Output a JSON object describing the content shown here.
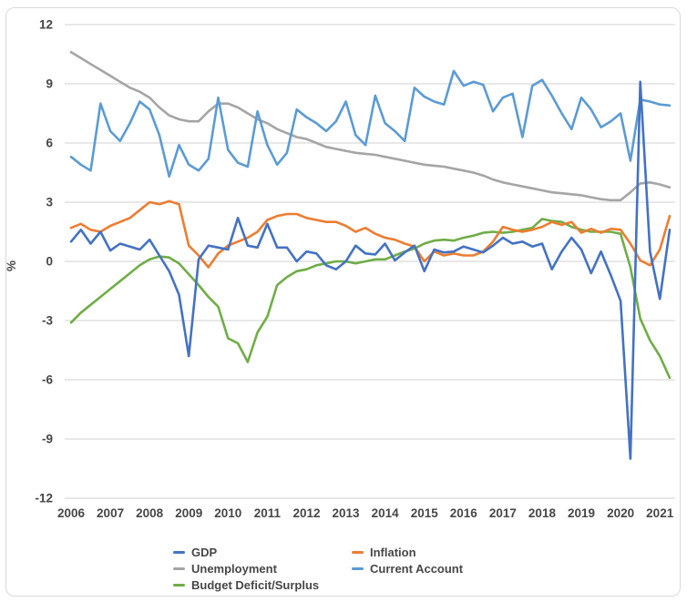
{
  "chart_data": {
    "type": "line",
    "title": "",
    "ylabel": "%",
    "grid": true,
    "legend_position": "bottom",
    "x_axis": {
      "unit": "quarter",
      "points_per_year": 4,
      "year_labels": [
        "2006",
        "2007",
        "2008",
        "2009",
        "2010",
        "2011",
        "2012",
        "2013",
        "2014",
        "2015",
        "2016",
        "2017",
        "2018",
        "2019",
        "2020",
        "2021"
      ]
    },
    "y_axis": {
      "ticks": [
        12,
        9,
        6,
        3,
        0,
        -3,
        -6,
        -9,
        -12
      ],
      "min": -12,
      "max": 12
    },
    "series": [
      {
        "name": "GDP",
        "color": "#4472C4",
        "values": [
          1.0,
          1.6,
          0.9,
          1.5,
          0.55,
          0.9,
          0.75,
          0.6,
          1.1,
          0.3,
          -0.5,
          -1.7,
          -4.8,
          0.1,
          0.8,
          0.7,
          0.6,
          2.2,
          0.8,
          0.7,
          1.9,
          0.7,
          0.7,
          0.0,
          0.5,
          0.4,
          -0.2,
          -0.4,
          0.0,
          0.8,
          0.4,
          0.35,
          0.9,
          0.05,
          0.45,
          0.8,
          -0.5,
          0.6,
          0.45,
          0.5,
          0.75,
          0.6,
          0.45,
          0.8,
          1.2,
          0.9,
          1.0,
          0.75,
          0.9,
          -0.4,
          0.5,
          1.2,
          0.6,
          -0.6,
          0.5,
          -0.7,
          -2.0,
          -10.0,
          9.1,
          0.5,
          -1.9,
          1.6
        ]
      },
      {
        "name": "Inflation",
        "color": "#ED7D31",
        "values": [
          1.7,
          1.9,
          1.6,
          1.5,
          1.8,
          2.0,
          2.2,
          2.6,
          3.0,
          2.9,
          3.05,
          2.9,
          0.8,
          0.3,
          -0.3,
          0.4,
          0.8,
          1.0,
          1.2,
          1.5,
          2.1,
          2.3,
          2.4,
          2.4,
          2.2,
          2.1,
          2.0,
          2.0,
          1.8,
          1.5,
          1.7,
          1.4,
          1.2,
          1.1,
          0.9,
          0.75,
          0.0,
          0.5,
          0.3,
          0.4,
          0.3,
          0.3,
          0.5,
          1.0,
          1.75,
          1.6,
          1.5,
          1.6,
          1.75,
          2.0,
          1.85,
          2.0,
          1.45,
          1.65,
          1.45,
          1.65,
          1.6,
          0.9,
          0.05,
          -0.2,
          0.6,
          2.3
        ]
      },
      {
        "name": "Unemployment",
        "color": "#A5A5A5",
        "values": [
          10.6,
          10.3,
          10.0,
          9.7,
          9.4,
          9.1,
          8.8,
          8.6,
          8.3,
          7.8,
          7.4,
          7.2,
          7.1,
          7.1,
          7.6,
          8.0,
          8.0,
          7.8,
          7.5,
          7.2,
          7.0,
          6.7,
          6.5,
          6.3,
          6.2,
          6.0,
          5.8,
          5.7,
          5.6,
          5.5,
          5.45,
          5.4,
          5.3,
          5.2,
          5.1,
          5.0,
          4.9,
          4.85,
          4.8,
          4.7,
          4.6,
          4.5,
          4.35,
          4.15,
          4.0,
          3.9,
          3.8,
          3.7,
          3.6,
          3.5,
          3.45,
          3.4,
          3.35,
          3.25,
          3.15,
          3.1,
          3.1,
          3.5,
          3.95,
          4.0,
          3.9,
          3.75
        ]
      },
      {
        "name": "Current Account",
        "color": "#5B9BD5",
        "values": [
          5.3,
          4.9,
          4.6,
          8.0,
          6.6,
          6.1,
          7.0,
          8.1,
          7.7,
          6.4,
          4.3,
          5.9,
          4.9,
          4.6,
          5.2,
          8.3,
          5.65,
          5.0,
          4.8,
          7.6,
          5.9,
          4.9,
          5.5,
          7.7,
          7.3,
          7.0,
          6.6,
          7.1,
          8.1,
          6.4,
          5.9,
          8.4,
          7.0,
          6.6,
          6.1,
          8.8,
          8.35,
          8.1,
          7.95,
          9.65,
          8.9,
          9.1,
          8.95,
          7.6,
          8.3,
          8.5,
          6.3,
          8.9,
          9.2,
          8.4,
          7.5,
          6.7,
          8.3,
          7.7,
          6.8,
          7.1,
          7.5,
          5.1,
          8.2,
          8.1,
          7.95,
          7.9
        ]
      },
      {
        "name": "Budget Deficit/Surplus",
        "color": "#70AD47",
        "values": [
          -3.1,
          -2.6,
          -2.2,
          -1.8,
          -1.4,
          -1.0,
          -0.6,
          -0.2,
          0.1,
          0.25,
          0.2,
          -0.1,
          -0.65,
          -1.2,
          -1.8,
          -2.3,
          -3.9,
          -4.15,
          -5.1,
          -3.6,
          -2.8,
          -1.2,
          -0.8,
          -0.5,
          -0.4,
          -0.2,
          -0.1,
          0.0,
          0.0,
          -0.1,
          0.0,
          0.1,
          0.1,
          0.3,
          0.5,
          0.65,
          0.9,
          1.05,
          1.1,
          1.05,
          1.2,
          1.3,
          1.45,
          1.5,
          1.45,
          1.5,
          1.6,
          1.7,
          2.15,
          2.05,
          2.0,
          1.75,
          1.6,
          1.5,
          1.5,
          1.5,
          1.4,
          -0.3,
          -2.9,
          -4.0,
          -4.8,
          -5.9
        ]
      }
    ],
    "legend_order": [
      0,
      1,
      2,
      3,
      4
    ],
    "draw_order": [
      2,
      3,
      4,
      1,
      0
    ],
    "style": {
      "gridline_color": "#d9d9d9",
      "label_color": "#474747",
      "frame_color": "#d9d9d9",
      "background": "#ffffff"
    }
  }
}
